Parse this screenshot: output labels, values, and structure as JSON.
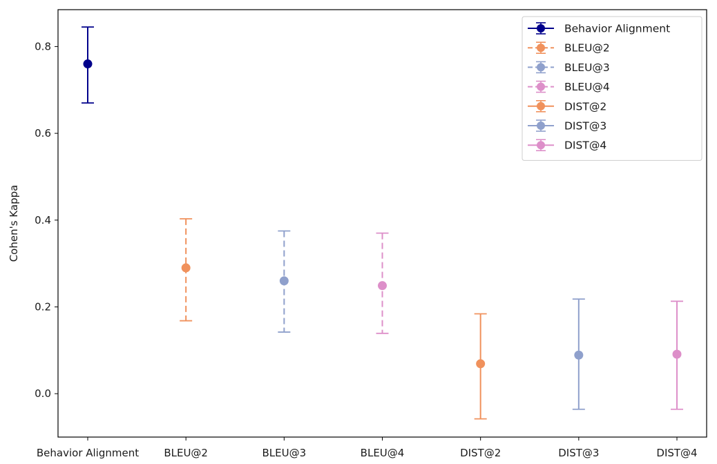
{
  "chart_data": {
    "type": "errorbar",
    "title": "",
    "xlabel": "",
    "ylabel": "Cohen's Kappa",
    "ylim": [
      -0.1,
      0.885
    ],
    "yticks": [
      0.0,
      0.2,
      0.4,
      0.6,
      0.8
    ],
    "ytick_labels": [
      "0.0",
      "0.2",
      "0.4",
      "0.6",
      "0.8"
    ],
    "categories": [
      "Behavior Alignment",
      "BLEU@2",
      "BLEU@3",
      "BLEU@4",
      "DIST@2",
      "DIST@3",
      "DIST@4"
    ],
    "legend_position": "top-right",
    "series": [
      {
        "name": "Behavior Alignment",
        "value": 0.76,
        "lower": 0.67,
        "upper": 0.845,
        "color": "#00008b",
        "linestyle": "solid"
      },
      {
        "name": "BLEU@2",
        "value": 0.29,
        "lower": 0.168,
        "upper": 0.403,
        "color": "#f0915c",
        "linestyle": "dashed"
      },
      {
        "name": "BLEU@3",
        "value": 0.26,
        "lower": 0.142,
        "upper": 0.375,
        "color": "#8fa0cc",
        "linestyle": "dashed"
      },
      {
        "name": "BLEU@4",
        "value": 0.249,
        "lower": 0.139,
        "upper": 0.37,
        "color": "#dd8fc9",
        "linestyle": "dashed"
      },
      {
        "name": "DIST@2",
        "value": 0.069,
        "lower": -0.058,
        "upper": 0.184,
        "color": "#f0915c",
        "linestyle": "solid"
      },
      {
        "name": "DIST@3",
        "value": 0.089,
        "lower": -0.036,
        "upper": 0.218,
        "color": "#8fa0cc",
        "linestyle": "solid"
      },
      {
        "name": "DIST@4",
        "value": 0.091,
        "lower": -0.036,
        "upper": 0.213,
        "color": "#dd8fc9",
        "linestyle": "solid"
      }
    ]
  }
}
